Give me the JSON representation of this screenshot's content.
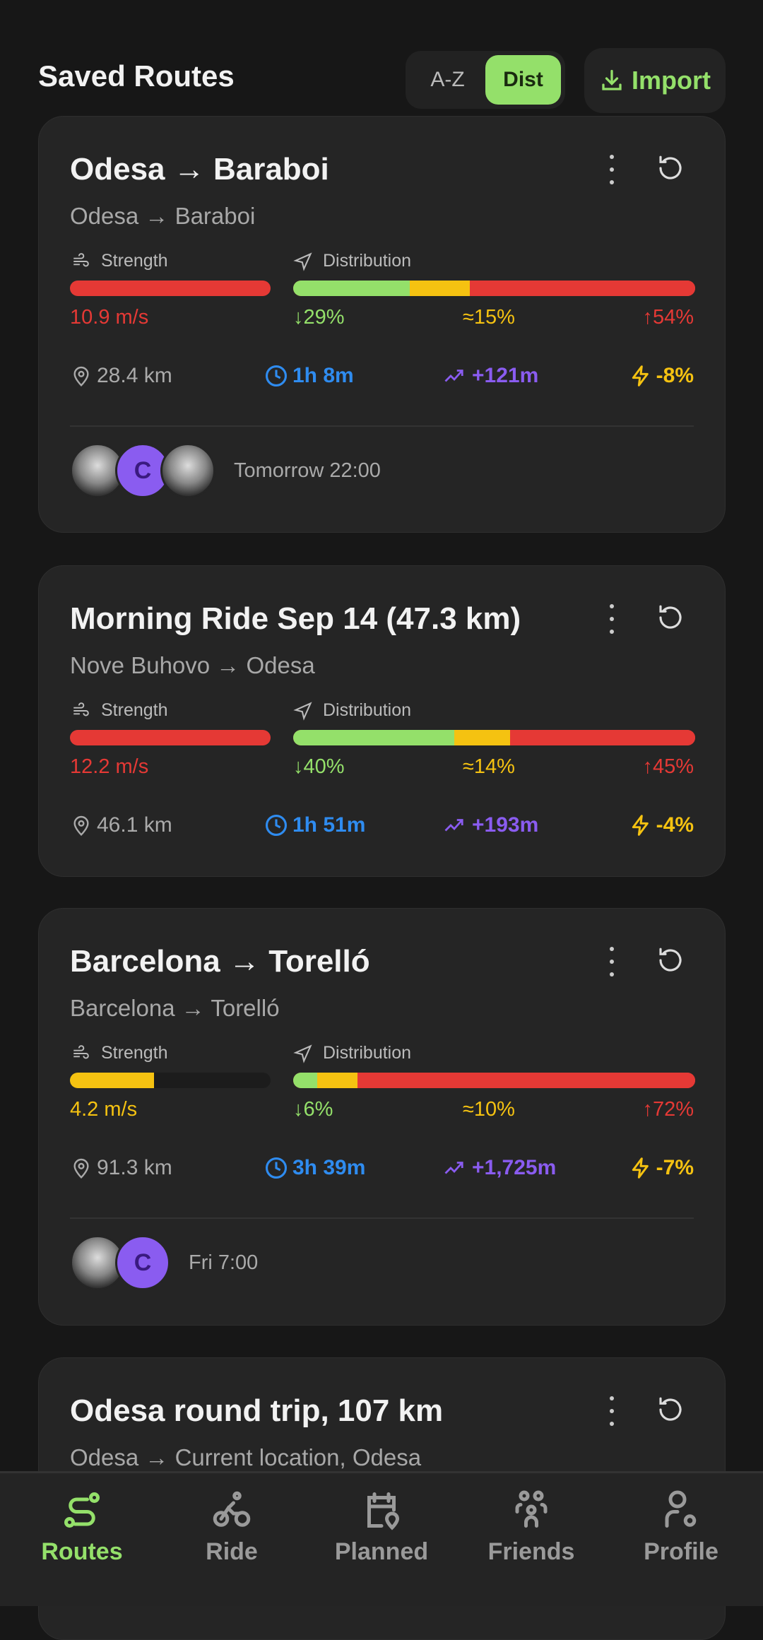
{
  "header": {
    "title": "Saved Routes",
    "sort_options": [
      "A-Z",
      "Dist"
    ],
    "sort_selected": "Dist",
    "import_label": "Import"
  },
  "labels": {
    "strength": "Strength",
    "distribution": "Distribution"
  },
  "colors": {
    "accent": "#94e06a",
    "red": "#e53935",
    "yellow": "#f5c211",
    "green": "#94e06a",
    "blue": "#2f8cf0",
    "purple": "#8a5cf0"
  },
  "routes": [
    {
      "name": "Odesa → Baraboi",
      "sub": "Odesa → Baraboi",
      "strength": "10.9 m/s",
      "strength_level": 1.0,
      "strength_color": "#e53935",
      "down": "↓29%",
      "flat": "≈15%",
      "up": "↑54%",
      "dist_pct": [
        29,
        15,
        54
      ],
      "distance": "28.4 km",
      "time": "1h 8m",
      "elev": "+121m",
      "energy": "-8%",
      "when": "Tomorrow 22:00",
      "avatars": [
        "photo",
        "C",
        "photo"
      ]
    },
    {
      "name": "Morning Ride Sep 14 (47.3 km)",
      "sub": "Nove Buhovo → Odesa",
      "strength": "12.2 m/s",
      "strength_level": 1.0,
      "strength_color": "#e53935",
      "down": "↓40%",
      "flat": "≈14%",
      "up": "↑45%",
      "dist_pct": [
        40,
        14,
        45
      ],
      "distance": "46.1 km",
      "time": "1h 51m",
      "elev": "+193m",
      "energy": "-4%"
    },
    {
      "name": "Barcelona → Torelló",
      "sub": "Barcelona → Torelló",
      "strength": "4.2 m/s",
      "strength_level": 0.42,
      "strength_color": "#f5c211",
      "down": "↓6%",
      "flat": "≈10%",
      "up": "↑72%",
      "dist_pct": [
        6,
        10,
        72
      ],
      "distance": "91.3 km",
      "time": "3h 39m",
      "elev": "+1,725m",
      "energy": "-7%",
      "when": "Fri 7:00",
      "avatars": [
        "photo",
        "C"
      ]
    },
    {
      "name": "Odesa round trip, 107 km",
      "sub": "Odesa → Current location, Odesa"
    }
  ],
  "nav": [
    {
      "label": "Routes",
      "icon": "route-icon",
      "active": true
    },
    {
      "label": "Ride",
      "icon": "bike-icon"
    },
    {
      "label": "Planned",
      "icon": "calendar-pin-icon"
    },
    {
      "label": "Friends",
      "icon": "friends-icon"
    },
    {
      "label": "Profile",
      "icon": "profile-settings-icon"
    }
  ]
}
